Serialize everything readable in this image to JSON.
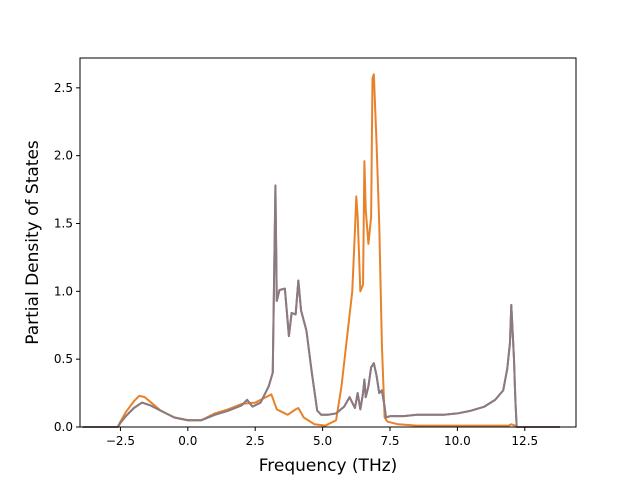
{
  "chart_data": {
    "type": "line",
    "title": "",
    "xlabel": "Frequency (THz)",
    "ylabel": "Partial Density of States",
    "xlim": [
      -4.0,
      14.4
    ],
    "ylim": [
      0,
      2.72
    ],
    "xticks": [
      -2.5,
      0.0,
      2.5,
      5.0,
      7.5,
      10.0,
      12.5
    ],
    "xtick_labels": [
      "−2.5",
      "0.0",
      "2.5",
      "5.0",
      "7.5",
      "10.0",
      "12.5"
    ],
    "yticks": [
      0.0,
      0.5,
      1.0,
      1.5,
      2.0,
      2.5
    ],
    "ytick_labels": [
      "0.0",
      "0.5",
      "1.0",
      "1.5",
      "2.0",
      "2.5"
    ],
    "grid": false,
    "legend": "none",
    "series": [
      {
        "color": "#7f7f7f",
        "x": [
          -3.9,
          -2.6,
          -2.5,
          -2.3,
          -2.0,
          -1.7,
          -1.4,
          -1.0,
          -0.5,
          0.0,
          0.5,
          1.0,
          1.5,
          2.0,
          2.2,
          2.4,
          2.7,
          3.0,
          3.15,
          3.25,
          3.3,
          3.4,
          3.6,
          3.75,
          3.85,
          4.0,
          4.1,
          4.2,
          4.4,
          4.6,
          4.8,
          4.95,
          5.2,
          5.5,
          5.8,
          6.0,
          6.2,
          6.3,
          6.4,
          6.5,
          6.55,
          6.6,
          6.7,
          6.8,
          6.9,
          7.0,
          7.1,
          7.2,
          7.3,
          7.35,
          7.5,
          8.0,
          8.5,
          9.0,
          9.5,
          10.0,
          10.5,
          11.0,
          11.4,
          11.7,
          11.85,
          11.95,
          12.0,
          12.1,
          12.15,
          12.2,
          13.8
        ],
        "y": [
          0.0,
          0.0,
          0.03,
          0.08,
          0.14,
          0.18,
          0.16,
          0.12,
          0.07,
          0.05,
          0.05,
          0.09,
          0.12,
          0.16,
          0.2,
          0.15,
          0.18,
          0.3,
          0.4,
          1.78,
          0.93,
          1.01,
          1.02,
          0.67,
          0.84,
          0.83,
          1.08,
          0.86,
          0.71,
          0.4,
          0.12,
          0.09,
          0.09,
          0.1,
          0.15,
          0.22,
          0.14,
          0.25,
          0.13,
          0.25,
          0.35,
          0.22,
          0.3,
          0.44,
          0.47,
          0.38,
          0.25,
          0.27,
          0.15,
          0.07,
          0.08,
          0.08,
          0.09,
          0.09,
          0.09,
          0.1,
          0.12,
          0.15,
          0.2,
          0.27,
          0.43,
          0.62,
          0.9,
          0.5,
          0.2,
          0.0,
          0.0
        ]
      },
      {
        "color": "#e8822a",
        "x": [
          -3.9,
          -2.6,
          -2.5,
          -2.3,
          -2.0,
          -1.8,
          -1.6,
          -1.3,
          -1.0,
          -0.5,
          0.0,
          0.5,
          1.0,
          1.5,
          2.0,
          2.5,
          2.9,
          3.1,
          3.3,
          3.5,
          3.7,
          4.0,
          4.1,
          4.3,
          4.7,
          5.1,
          5.5,
          5.7,
          5.9,
          6.1,
          6.2,
          6.25,
          6.3,
          6.4,
          6.5,
          6.55,
          6.6,
          6.7,
          6.8,
          6.85,
          6.9,
          7.0,
          7.1,
          7.2,
          7.3,
          7.4,
          7.8,
          8.5,
          9.5,
          10.5,
          11.5,
          11.9,
          12.0,
          12.15,
          12.2,
          13.8
        ],
        "y": [
          0.0,
          0.0,
          0.04,
          0.11,
          0.19,
          0.23,
          0.22,
          0.17,
          0.12,
          0.07,
          0.05,
          0.05,
          0.1,
          0.13,
          0.17,
          0.18,
          0.22,
          0.24,
          0.13,
          0.11,
          0.09,
          0.13,
          0.14,
          0.07,
          0.02,
          0.01,
          0.05,
          0.3,
          0.65,
          1.0,
          1.45,
          1.7,
          1.55,
          1.0,
          1.05,
          1.96,
          1.6,
          1.35,
          1.55,
          2.57,
          2.6,
          2.1,
          1.5,
          0.6,
          0.07,
          0.04,
          0.02,
          0.01,
          0.01,
          0.01,
          0.01,
          0.01,
          0.02,
          0.01,
          0.0,
          0.0
        ]
      },
      {
        "color": "#8c7a80",
        "x": [
          -3.9,
          -2.6,
          -2.5,
          -2.3,
          -2.0,
          -1.7,
          -1.4,
          -1.0,
          -0.5,
          0.0,
          0.5,
          1.0,
          1.5,
          2.0,
          2.2,
          2.4,
          2.7,
          3.0,
          3.15,
          3.25,
          3.3,
          3.4,
          3.6,
          3.75,
          3.85,
          4.0,
          4.1,
          4.2,
          4.4,
          4.6,
          4.8,
          4.95,
          5.2,
          5.5,
          5.8,
          6.0,
          6.2,
          6.3,
          6.4,
          6.5,
          6.55,
          6.6,
          6.7,
          6.8,
          6.9,
          7.0,
          7.1,
          7.2,
          7.3,
          7.35,
          7.5,
          8.0,
          8.5,
          9.0,
          9.5,
          10.0,
          10.5,
          11.0,
          11.4,
          11.7,
          11.85,
          11.95,
          12.0,
          12.1,
          12.15,
          12.2,
          13.8
        ],
        "y": [
          0.0,
          0.0,
          0.03,
          0.08,
          0.14,
          0.18,
          0.16,
          0.12,
          0.07,
          0.05,
          0.05,
          0.09,
          0.12,
          0.16,
          0.2,
          0.15,
          0.18,
          0.3,
          0.4,
          1.78,
          0.93,
          1.01,
          1.02,
          0.67,
          0.84,
          0.83,
          1.08,
          0.86,
          0.71,
          0.4,
          0.12,
          0.09,
          0.09,
          0.1,
          0.15,
          0.22,
          0.14,
          0.25,
          0.13,
          0.25,
          0.35,
          0.22,
          0.3,
          0.44,
          0.47,
          0.38,
          0.25,
          0.27,
          0.15,
          0.07,
          0.08,
          0.08,
          0.09,
          0.09,
          0.09,
          0.1,
          0.12,
          0.15,
          0.2,
          0.27,
          0.43,
          0.62,
          0.9,
          0.5,
          0.2,
          0.0,
          0.0
        ]
      }
    ]
  }
}
